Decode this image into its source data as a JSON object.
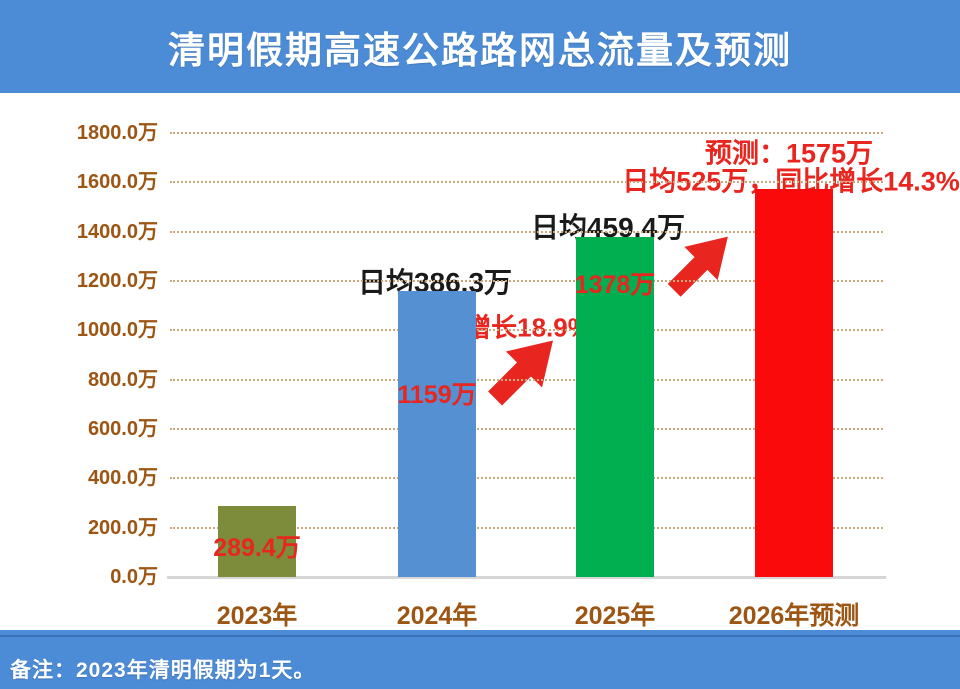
{
  "header": {
    "title": "清明假期高速公路路网总流量及预测"
  },
  "footer": {
    "note": "备注：2023年清明假期为1天。"
  },
  "colors": {
    "banner_blue": "#4C8BD5",
    "bar_2023_olive": "#7C8C3A",
    "bar_2024_blue": "#5590D2",
    "bar_2025_green": "#01AE50",
    "bar_2026_red": "#FA0A0A",
    "value_label_red": "#E8251F",
    "axis_text_brown": "#9C5513",
    "gridline_tan": "#C9A87C"
  },
  "chart_data": {
    "type": "bar",
    "title": "清明假期高速公路路网总流量及预测",
    "unit": "万",
    "categories": [
      "2023年",
      "2024年",
      "2025年",
      "2026年预测"
    ],
    "values": [
      289.4,
      1159,
      1378,
      1575
    ],
    "bar_value_labels": [
      "289.4万",
      "1159万",
      "1378万",
      ""
    ],
    "bar_colors": [
      "#7C8C3A",
      "#5590D2",
      "#01AE50",
      "#FA0A0A"
    ],
    "ylim": [
      0,
      1800
    ],
    "ytick_step": 200,
    "ytick_labels": [
      "0.0万",
      "200.0万",
      "400.0万",
      "600.0万",
      "800.0万",
      "1000.0万",
      "1200.0万",
      "1400.0万",
      "1600.0万",
      "1800.0万"
    ],
    "grid": "horizontal-dotted",
    "legend": "none",
    "annotations": [
      {
        "text": "日均386.3万",
        "color": "black",
        "anchor": "above-2024-bar"
      },
      {
        "text": "日均459.4万",
        "color": "black",
        "anchor": "above-2025-bar"
      },
      {
        "text": "增长18.9%",
        "color": "red",
        "anchor": "between-2024-and-2025"
      },
      {
        "text": "预测：1575万",
        "color": "red",
        "anchor": "above-2026-bar-line1"
      },
      {
        "text": "日均525万，同比增长14.3%",
        "color": "red",
        "anchor": "above-2026-bar-line2"
      }
    ],
    "arrows": [
      {
        "name": "growth-arrow-2024-2025",
        "direction": "up-right",
        "color": "#E8251F"
      },
      {
        "name": "growth-arrow-2025-2026",
        "direction": "up-right",
        "color": "#E8251F"
      }
    ]
  }
}
